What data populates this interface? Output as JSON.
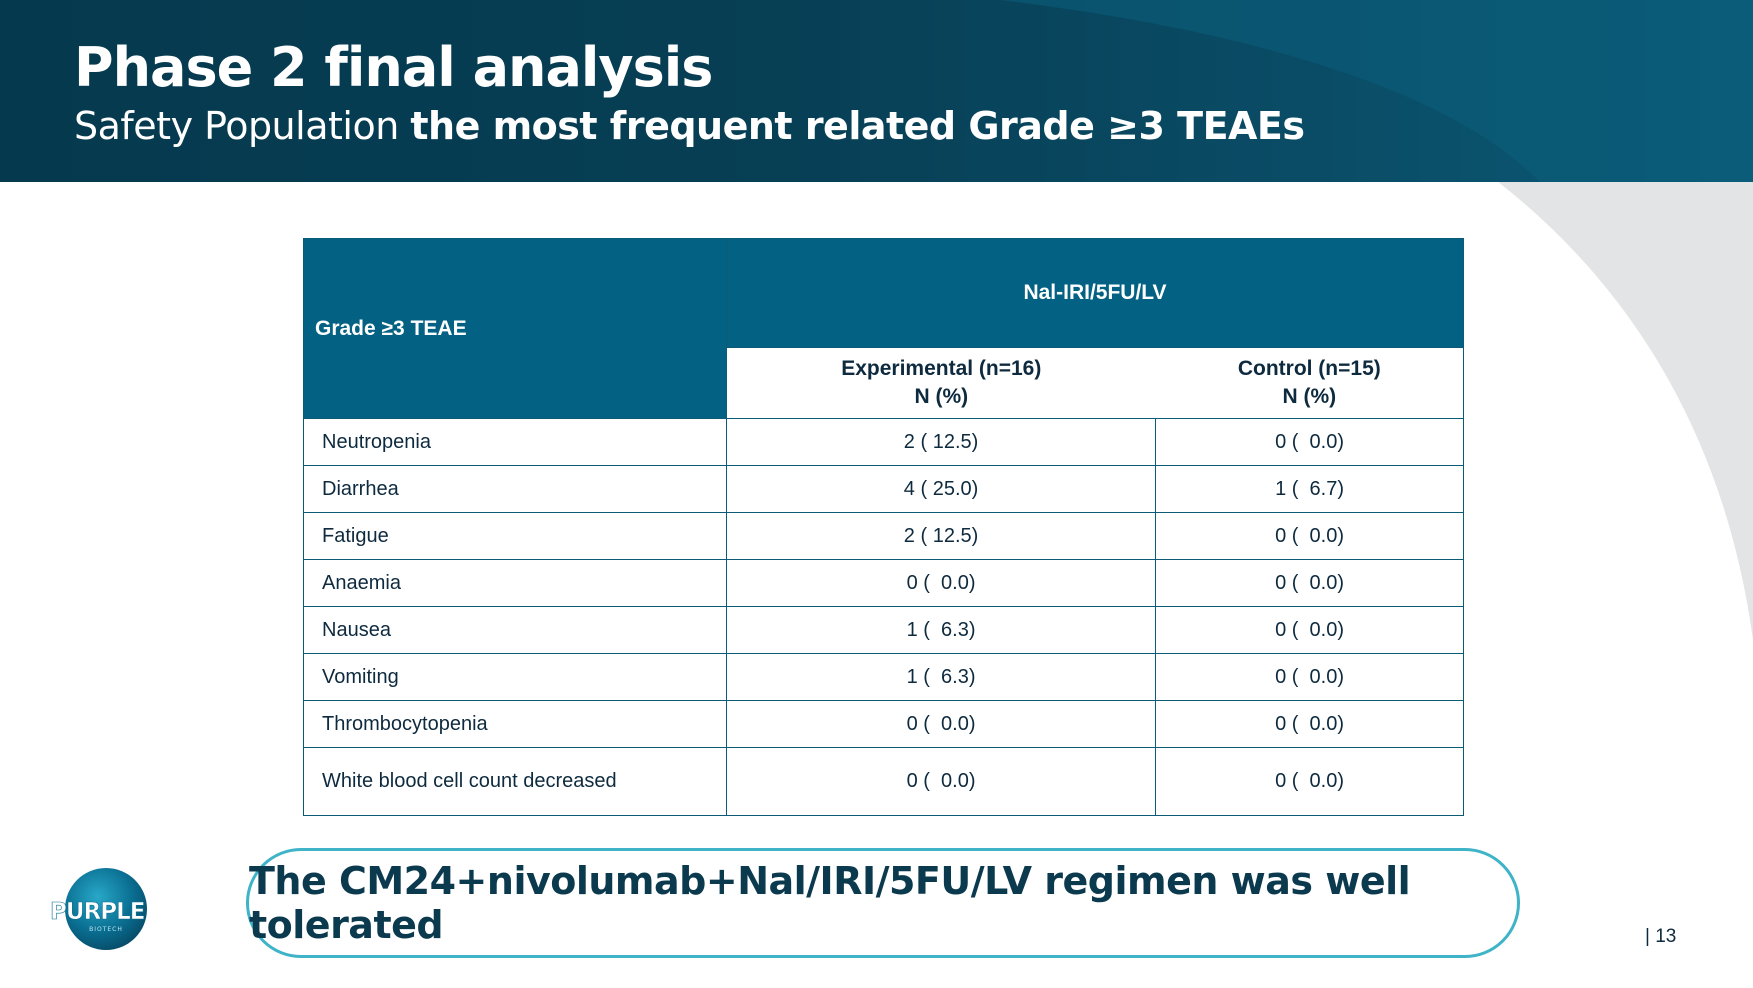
{
  "header": {
    "title": "Phase 2 final analysis",
    "subtitle_light": "Safety Population ",
    "subtitle_bold": "the most frequent related Grade ≥3 TEAEs"
  },
  "table": {
    "row_header": "Grade ≥3 TEAE",
    "group_header": "Nal-IRI/5FU/LV",
    "columns": [
      {
        "name": "Experimental (n=16)",
        "unit": "N (%)"
      },
      {
        "name": "Control (n=15)",
        "unit": "N (%)"
      }
    ],
    "rows": [
      {
        "event": "Neutropenia",
        "experimental": "2 ( 12.5)",
        "control": "0 (  0.0)"
      },
      {
        "event": "Diarrhea",
        "experimental": "4 ( 25.0)",
        "control": "1 (  6.7)"
      },
      {
        "event": "Fatigue",
        "experimental": "2 ( 12.5)",
        "control": "0 (  0.0)"
      },
      {
        "event": "Anaemia",
        "experimental": "0 (  0.0)",
        "control": "0 (  0.0)"
      },
      {
        "event": "Nausea",
        "experimental": "1 (  6.3)",
        "control": "0 (  0.0)"
      },
      {
        "event": "Vomiting",
        "experimental": "1 (  6.3)",
        "control": "0 (  0.0)"
      },
      {
        "event": "Thrombocytopenia",
        "experimental": "0 (  0.0)",
        "control": "0 (  0.0)"
      },
      {
        "event": "White blood cell count decreased",
        "experimental": "0 (  0.0)",
        "control": "0 (  0.0)"
      }
    ]
  },
  "callout": "The CM24+nivolumab+Nal/IRI/5FU/LV regimen was well tolerated",
  "logo": {
    "text": "PURPLE",
    "subtext": "BIOTECH"
  },
  "page_number": "| 13",
  "colors": {
    "header_dark": "#05394e",
    "table_header": "#036284",
    "callout_border": "#3fb3c7",
    "arc_grey": "#e3e4e6"
  }
}
